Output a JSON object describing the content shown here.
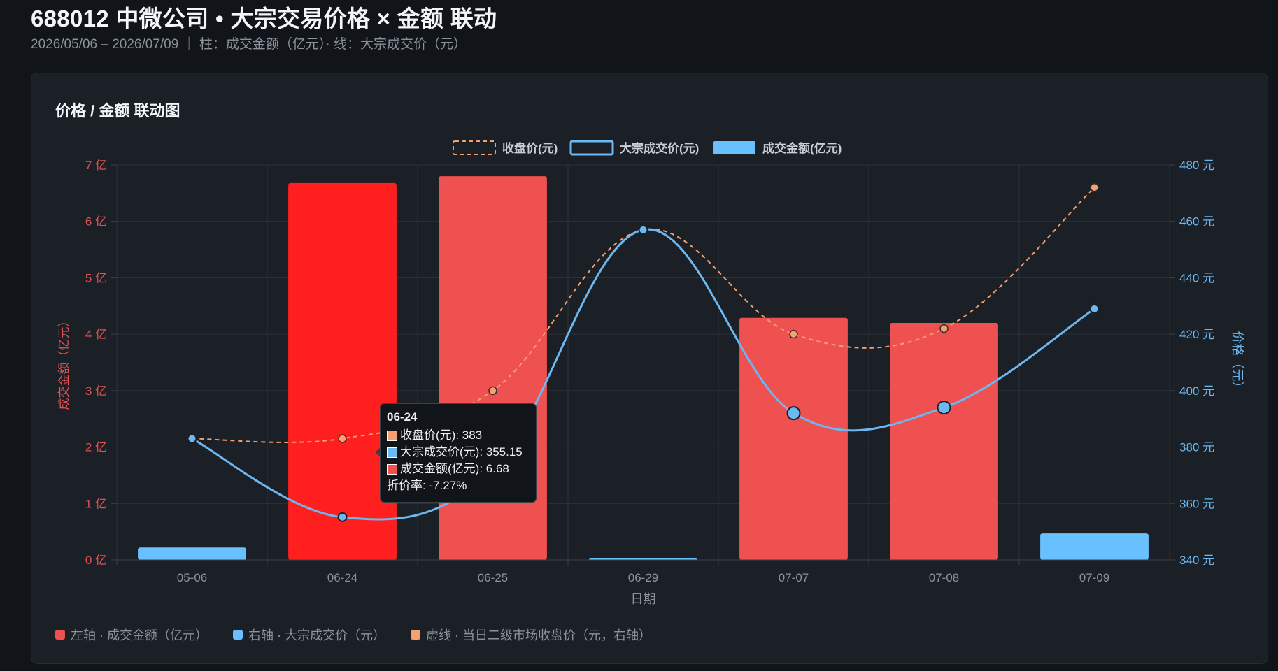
{
  "header": {
    "title": "688012 中微公司 • 大宗交易价格 × 金额 联动",
    "subtitle": "2026/05/06 – 2026/07/09 ｜ 柱：成交金额（亿元）· 线：大宗成交价（元）"
  },
  "card": {
    "title": "价格 / 金额 联动图"
  },
  "colors": {
    "bar_red": "#ef5050",
    "bar_red_highlight": "#ff1f1f",
    "bar_blue": "#69c0ff",
    "line_blue": "#6cb8f2",
    "line_orange": "#f5a06e",
    "left_axis": "#e05252",
    "right_axis": "#6cb8f2"
  },
  "chart_data": {
    "type": "bar",
    "xlabel": "日期",
    "ylabel_left": "成交金额（亿元）",
    "ylabel_right": "价格（元）",
    "categories": [
      "05-06",
      "06-24",
      "06-25",
      "06-29",
      "07-07",
      "07-08",
      "07-09"
    ],
    "ylim_left": [
      0,
      7
    ],
    "yticks_left": [
      "0 亿",
      "1 亿",
      "2 亿",
      "3 亿",
      "4 亿",
      "5 亿",
      "6 亿",
      "7 亿"
    ],
    "ylim_right": [
      340,
      480
    ],
    "yticks_right": [
      "340 元",
      "360 元",
      "380 元",
      "400 元",
      "420 元",
      "440 元",
      "460 元",
      "480 元"
    ],
    "series": [
      {
        "name": "收盘价(元)",
        "kind": "line-dashed",
        "axis": "right",
        "values": [
          383,
          383,
          400,
          457,
          420,
          422,
          472
        ]
      },
      {
        "name": "大宗成交价(元)",
        "kind": "line",
        "axis": "right",
        "values": [
          383,
          355.15,
          372,
          457,
          392,
          394,
          429
        ]
      },
      {
        "name": "成交金额(亿元)",
        "kind": "bar",
        "axis": "left",
        "values": [
          0.22,
          6.68,
          6.8,
          0.02,
          4.29,
          4.2,
          0.47
        ],
        "bar_colors": [
          "blue",
          "red-highlight",
          "red",
          "blue",
          "red",
          "red",
          "blue"
        ]
      }
    ],
    "legend_position": "top-center",
    "grid": true
  },
  "tooltip": {
    "date": "06-24",
    "rows": [
      {
        "text": "收盘价(元): 383",
        "color": "#f5a06e"
      },
      {
        "text": "大宗成交价(元): 355.15",
        "color": "#6cb8f2"
      },
      {
        "text": "成交金额(亿元): 6.68",
        "color": "#ef5050"
      }
    ],
    "discount": "折价率:  -7.27%"
  },
  "footer_legend": [
    {
      "text": "左轴 · 成交金额（亿元）",
      "color": "#ef5050"
    },
    {
      "text": "右轴 · 大宗成交价（元）",
      "color": "#69c0ff"
    },
    {
      "text": "虚线 · 当日二级市场收盘价（元，右轴）",
      "color": "#f5a06e"
    }
  ]
}
